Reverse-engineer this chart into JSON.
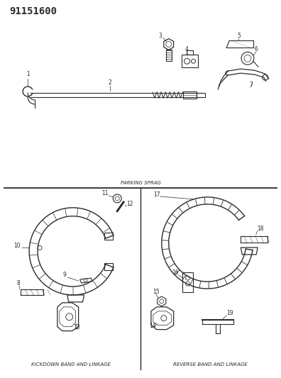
{
  "title_number": "91151600",
  "section1_label": "PARKING SPRAG",
  "section2_label": "KICKDOWN BAND AND LINKAGE",
  "section3_label": "REVERSE BAND AND LINKAGE",
  "bg_color": "#ffffff",
  "line_color": "#2a2a2a",
  "text_color": "#2a2a2a",
  "title_fontsize": 10,
  "label_fontsize": 5.0,
  "part_num_fontsize": 5.5
}
